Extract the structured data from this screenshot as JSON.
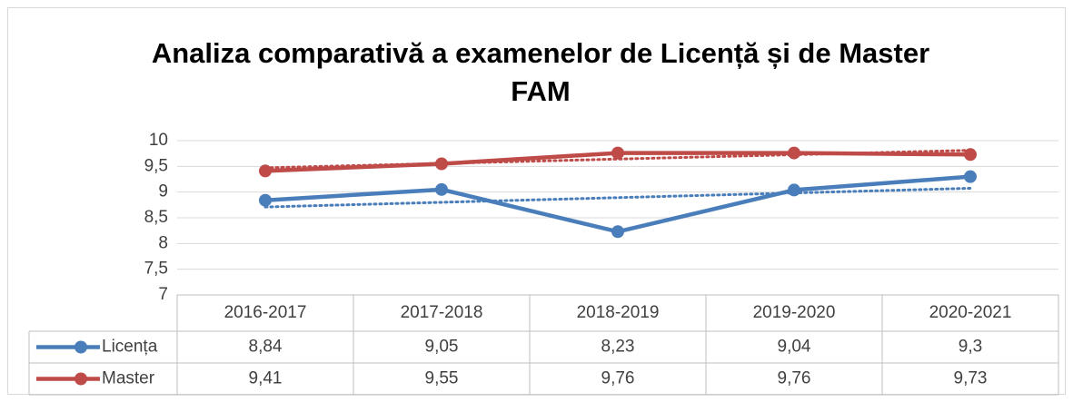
{
  "chart_data": {
    "type": "line",
    "title": "Analiza comparativă a examenelor de Licență și de Master FAM",
    "categories": [
      "2016-2017",
      "2017-2018",
      "2018-2019",
      "2019-2020",
      "2020-2021"
    ],
    "series": [
      {
        "name": "Licența",
        "color": "#4a7ebb",
        "values": [
          8.84,
          9.05,
          8.23,
          9.04,
          9.3
        ],
        "value_labels": [
          "8,84",
          "9,05",
          "8,23",
          "9,04",
          "9,3"
        ],
        "trendline": "linear"
      },
      {
        "name": "Master",
        "color": "#be4b48",
        "values": [
          9.41,
          9.55,
          9.76,
          9.76,
          9.73
        ],
        "value_labels": [
          "9,41",
          "9,55",
          "9,76",
          "9,76",
          "9,73"
        ],
        "trendline": "linear"
      }
    ],
    "ylim": [
      7,
      10
    ],
    "yticks": [
      7,
      {
        "value": 7.5,
        "label": "7,5"
      },
      8,
      {
        "value": 8.5,
        "label": "8,5"
      },
      9,
      {
        "value": 9.5,
        "label": "9,5"
      },
      10
    ],
    "grid": true,
    "data_table": true
  }
}
